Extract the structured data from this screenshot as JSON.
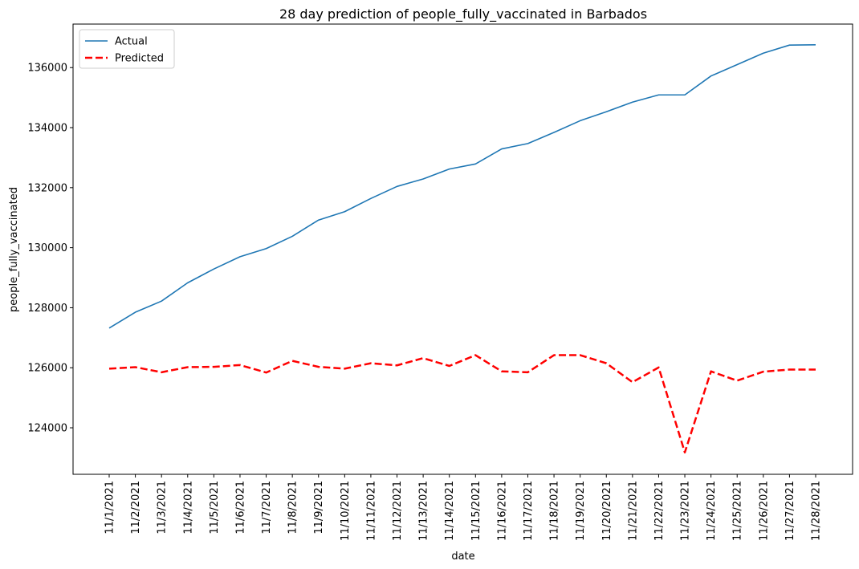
{
  "chart_data": {
    "type": "line",
    "title": "28 day prediction of people_fully_vaccinated in Barbados",
    "xlabel": "date",
    "ylabel": "people_fully_vaccinated",
    "categories": [
      "11/1/2021",
      "11/2/2021",
      "11/3/2021",
      "11/4/2021",
      "11/5/2021",
      "11/6/2021",
      "11/7/2021",
      "11/8/2021",
      "11/9/2021",
      "11/10/2021",
      "11/11/2021",
      "11/12/2021",
      "11/13/2021",
      "11/14/2021",
      "11/15/2021",
      "11/16/2021",
      "11/17/2021",
      "11/18/2021",
      "11/19/2021",
      "11/20/2021",
      "11/21/2021",
      "11/22/2021",
      "11/23/2021",
      "11/24/2021",
      "11/25/2021",
      "11/26/2021",
      "11/27/2021",
      "11/28/2021"
    ],
    "yticks": [
      124000,
      126000,
      128000,
      130000,
      132000,
      134000,
      136000
    ],
    "ylim": [
      122450,
      137450
    ],
    "legend_position": "top-left",
    "grid": false,
    "series": [
      {
        "name": "Actual",
        "color": "#1f77b4",
        "style": "solid",
        "values": [
          127320,
          127850,
          128220,
          128830,
          129290,
          129700,
          129970,
          130380,
          130920,
          131200,
          131640,
          132040,
          132290,
          132620,
          132790,
          133290,
          133470,
          133840,
          134230,
          134530,
          134850,
          135090,
          135090,
          135720,
          136100,
          136480,
          136750,
          136760
        ]
      },
      {
        "name": "Predicted",
        "color": "#ff0000",
        "style": "dashed",
        "values": [
          125970,
          126020,
          125850,
          126020,
          126030,
          126090,
          125840,
          126230,
          126030,
          125970,
          126150,
          126080,
          126320,
          126060,
          126420,
          125880,
          125850,
          126420,
          126420,
          126150,
          125520,
          126010,
          123180,
          125880,
          125570,
          125870,
          125940,
          125940
        ]
      }
    ]
  }
}
